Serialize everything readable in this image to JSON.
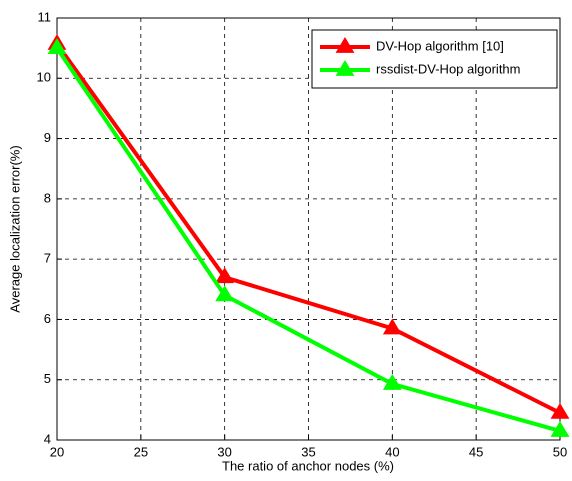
{
  "chart_data": {
    "type": "line",
    "xlabel": "The ratio of anchor nodes (%)",
    "ylabel": "Average localization error(%)",
    "x": [
      20,
      30,
      40,
      50
    ],
    "series": [
      {
        "name": "DV-Hop algorithm [10]",
        "color": "#ff0000",
        "values": [
          10.57,
          6.7,
          5.85,
          4.45
        ]
      },
      {
        "name": "rssdist-DV-Hop algorithm",
        "color": "#00ff00",
        "values": [
          10.5,
          6.4,
          4.93,
          4.15
        ]
      }
    ],
    "xlim": [
      20,
      50
    ],
    "xticks": [
      20,
      25,
      30,
      35,
      40,
      45,
      50
    ],
    "ylim": [
      4,
      11
    ],
    "yticks": [
      4,
      5,
      6,
      7,
      8,
      9,
      10,
      11
    ],
    "grid": true,
    "legend": "upper right"
  }
}
